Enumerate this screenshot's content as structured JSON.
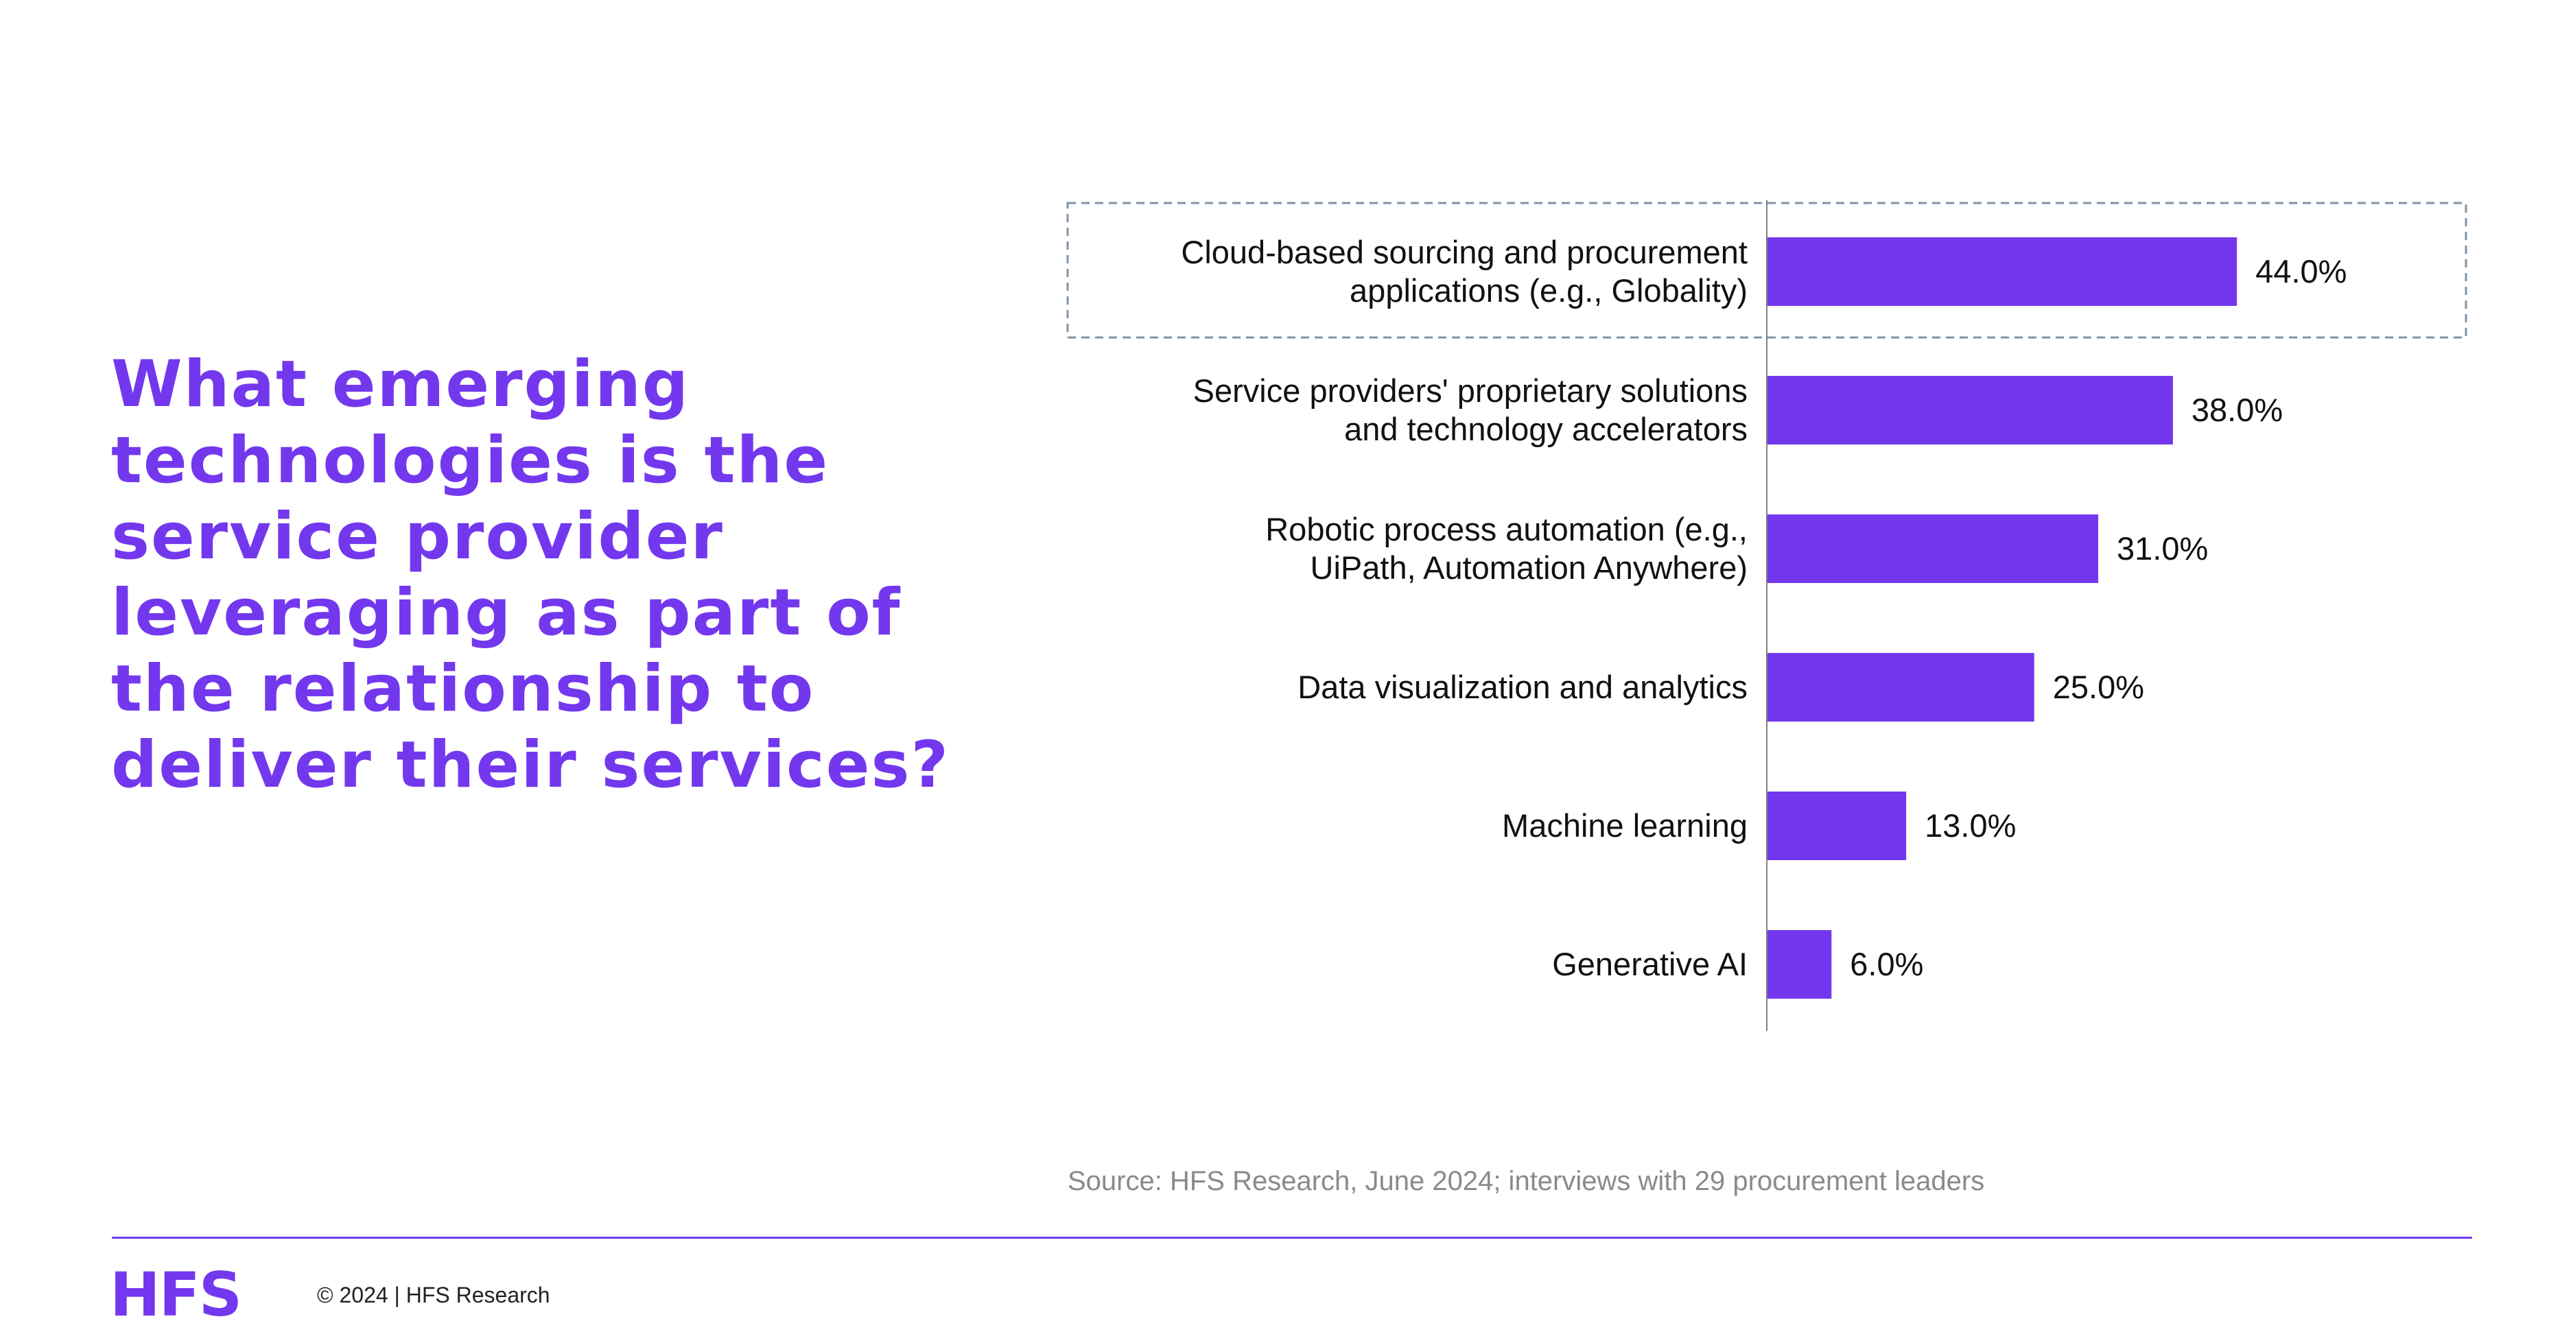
{
  "question": "What emerging technologies is the service provider leveraging as part of the relationship to deliver their services?",
  "chart_data": {
    "type": "bar",
    "orientation": "horizontal",
    "categories": [
      [
        "Cloud-based sourcing and procurement",
        "applications (e.g., Globality)"
      ],
      [
        "Service providers' proprietary solutions",
        "and technology accelerators"
      ],
      [
        "Robotic process automation (e.g.,",
        "UiPath, Automation Anywhere)"
      ],
      [
        "Data visualization and analytics"
      ],
      [
        "Machine learning"
      ],
      [
        "Generative AI"
      ]
    ],
    "values": [
      44.0,
      38.0,
      31.0,
      25.0,
      13.0,
      6.0
    ],
    "value_labels": [
      "44.0%",
      "38.0%",
      "31.0%",
      "25.0%",
      "13.0%",
      "6.0%"
    ],
    "highlighted_index": 0,
    "bar_color": "#7338ee",
    "highlight_border_color": "#7f93a8",
    "xlim": [
      0,
      100
    ],
    "grid": false
  },
  "source": "Source: HFS Research, June 2024; interviews with 29 procurement leaders",
  "footer": {
    "logo": "HFS",
    "copyright": "© 2024 | HFS Research"
  },
  "colors": {
    "accent": "#7338ee",
    "source_text": "#8a8a8a"
  }
}
